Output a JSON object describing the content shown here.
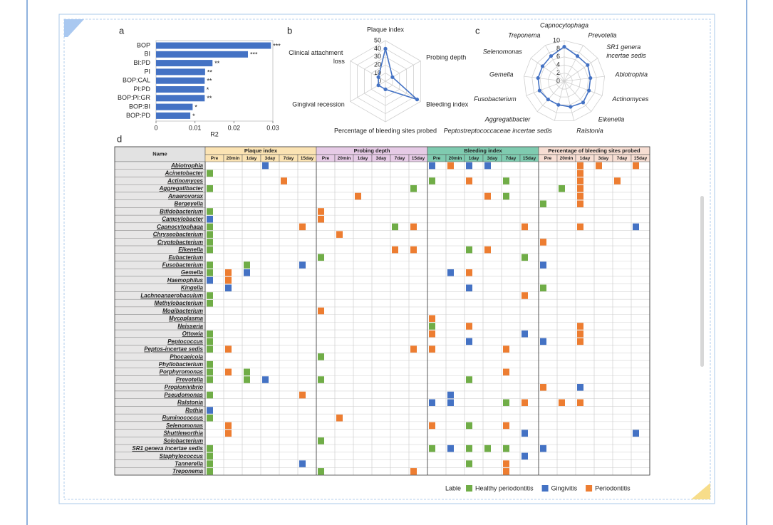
{
  "chart_data": [
    {
      "type": "barh",
      "label": "a",
      "categories": [
        "BOP",
        "BI",
        "BI:PD",
        "PI",
        "BOP:CAL",
        "PI:PD",
        "BOP:PI:GR",
        "BOP:BI",
        "BOP:PD"
      ],
      "values": [
        0.0295,
        0.0236,
        0.0145,
        0.0126,
        0.0125,
        0.0124,
        0.0125,
        0.0094,
        0.0088
      ],
      "significance": [
        "***",
        "***",
        "**",
        "**",
        "**",
        "*",
        "**",
        "*",
        "*"
      ],
      "color": "#4472c4",
      "xlabel": "R2",
      "xlim": [
        0,
        0.03
      ],
      "xticks": [
        0,
        0.01,
        0.02,
        0.03
      ]
    },
    {
      "type": "radar",
      "label": "b",
      "categories": [
        "Plaque index",
        "Probing depth",
        "Bleeding index",
        "Percentage of bleeding sites probed",
        "Gingival recession",
        "Clinical attachment loss"
      ],
      "values": [
        40,
        10,
        45,
        10,
        10,
        10
      ],
      "color": "#4472c4",
      "rlim": [
        0,
        50
      ],
      "rticks": [
        0,
        10,
        20,
        30,
        40,
        50
      ]
    },
    {
      "type": "radar",
      "label": "c",
      "categories": [
        "Capnocytophaga",
        "Prevotella",
        "SR1 genera incertae sedis",
        "Abiotrophia",
        "Actinomyces",
        "Eikenella",
        "Ralstonia",
        "Peptostreptococcaceae incertae sedis",
        "Aggregatibacter",
        "Fusobacterium",
        "Gemella",
        "Selenomonas",
        "Treponema"
      ],
      "values": [
        8.5,
        7,
        7,
        6.5,
        6.5,
        7,
        6.5,
        6,
        6,
        6.5,
        6.5,
        6.5,
        7
      ],
      "color": "#4472c4",
      "rlim": [
        0,
        10
      ],
      "rticks": [
        0,
        2,
        4,
        6,
        8,
        10
      ]
    }
  ],
  "table": {
    "label": "d",
    "name_header": "Name",
    "groups": [
      {
        "name": "Plaque index",
        "color": "#fbe3b3"
      },
      {
        "name": "Probing depth",
        "color": "#e6cbe6"
      },
      {
        "name": "Bleeding index",
        "color": "#7fcbb0"
      },
      {
        "name": "Percentage of bleeding sites probed",
        "color": "#f7ded3"
      }
    ],
    "times": [
      "Pre",
      "20min",
      "1day",
      "3day",
      "7day",
      "15day"
    ],
    "rows": [
      {
        "name": "Abiotrophia",
        "cells": [
          [
            3,
            1
          ],
          [
            12,
            1
          ],
          [
            13,
            2
          ],
          [
            14,
            1
          ],
          [
            15,
            1
          ],
          [
            20,
            2
          ],
          [
            21,
            2
          ],
          [
            23,
            2
          ]
        ]
      },
      {
        "name": "Acinetobacter",
        "cells": [
          [
            0,
            0
          ],
          [
            20,
            2
          ]
        ]
      },
      {
        "name": "Actinomyces",
        "cells": [
          [
            4,
            2
          ],
          [
            12,
            0
          ],
          [
            14,
            2
          ],
          [
            16,
            0
          ],
          [
            20,
            2
          ],
          [
            22,
            2
          ]
        ]
      },
      {
        "name": "Aggregatibacter",
        "cells": [
          [
            0,
            0
          ],
          [
            11,
            0
          ],
          [
            19,
            0
          ],
          [
            20,
            2
          ]
        ]
      },
      {
        "name": "Anaerovorax",
        "cells": [
          [
            8,
            2
          ],
          [
            15,
            2
          ],
          [
            16,
            0
          ],
          [
            20,
            2
          ]
        ]
      },
      {
        "name": "Bergeyella",
        "cells": [
          [
            18,
            0
          ],
          [
            20,
            2
          ]
        ]
      },
      {
        "name": "Bifidobacterium",
        "cells": [
          [
            0,
            0
          ],
          [
            6,
            2
          ]
        ]
      },
      {
        "name": "Campylobacter",
        "cells": [
          [
            0,
            1
          ],
          [
            6,
            2
          ]
        ]
      },
      {
        "name": "Capnocytophaga",
        "cells": [
          [
            0,
            0
          ],
          [
            5,
            2
          ],
          [
            10,
            0
          ],
          [
            11,
            2
          ],
          [
            17,
            2
          ],
          [
            20,
            2
          ],
          [
            23,
            1
          ]
        ]
      },
      {
        "name": "Chryseobacterium",
        "cells": [
          [
            0,
            0
          ],
          [
            7,
            2
          ]
        ]
      },
      {
        "name": "Cryptobacterium",
        "cells": [
          [
            0,
            0
          ],
          [
            18,
            2
          ]
        ]
      },
      {
        "name": "Eikenella",
        "cells": [
          [
            0,
            0
          ],
          [
            10,
            2
          ],
          [
            11,
            2
          ],
          [
            14,
            0
          ],
          [
            15,
            2
          ]
        ]
      },
      {
        "name": "Eubacterium",
        "cells": [
          [
            6,
            0
          ],
          [
            17,
            0
          ]
        ]
      },
      {
        "name": "Fusobacterium",
        "cells": [
          [
            0,
            0
          ],
          [
            2,
            0
          ],
          [
            5,
            1
          ],
          [
            18,
            1
          ]
        ]
      },
      {
        "name": "Gemella",
        "cells": [
          [
            0,
            0
          ],
          [
            1,
            2
          ],
          [
            2,
            1
          ],
          [
            13,
            1
          ],
          [
            14,
            2
          ]
        ]
      },
      {
        "name": "Haemophilus",
        "cells": [
          [
            0,
            1
          ],
          [
            1,
            2
          ]
        ]
      },
      {
        "name": "Kingella",
        "cells": [
          [
            1,
            1
          ],
          [
            14,
            1
          ],
          [
            18,
            0
          ]
        ]
      },
      {
        "name": "Lachnoanaerobaculum",
        "cells": [
          [
            0,
            0
          ],
          [
            17,
            2
          ]
        ]
      },
      {
        "name": "Methylobacterium",
        "cells": [
          [
            0,
            0
          ]
        ]
      },
      {
        "name": "Mogibacterium",
        "cells": [
          [
            6,
            2
          ]
        ]
      },
      {
        "name": "Mycoplasma",
        "cells": [
          [
            12,
            2
          ]
        ]
      },
      {
        "name": "Neisseria",
        "cells": [
          [
            12,
            0
          ],
          [
            14,
            2
          ],
          [
            20,
            2
          ]
        ]
      },
      {
        "name": "Ottowia",
        "cells": [
          [
            0,
            0
          ],
          [
            12,
            2
          ],
          [
            17,
            1
          ],
          [
            20,
            2
          ]
        ]
      },
      {
        "name": "Peptococcus",
        "cells": [
          [
            0,
            0
          ],
          [
            14,
            1
          ],
          [
            18,
            1
          ],
          [
            20,
            2
          ]
        ]
      },
      {
        "name": "Peptos-incertae sedis",
        "cells": [
          [
            0,
            0
          ],
          [
            1,
            2
          ],
          [
            11,
            2
          ],
          [
            12,
            2
          ],
          [
            16,
            2
          ]
        ]
      },
      {
        "name": "Phocaeicola",
        "cells": [
          [
            6,
            0
          ]
        ]
      },
      {
        "name": "Phyllobacterium",
        "cells": [
          [
            0,
            0
          ]
        ]
      },
      {
        "name": "Porphyromonas",
        "cells": [
          [
            0,
            0
          ],
          [
            1,
            2
          ],
          [
            2,
            0
          ],
          [
            16,
            2
          ]
        ]
      },
      {
        "name": "Prevotella",
        "cells": [
          [
            0,
            0
          ],
          [
            2,
            0
          ],
          [
            3,
            1
          ],
          [
            6,
            0
          ],
          [
            14,
            0
          ]
        ]
      },
      {
        "name": "Propionivibrio",
        "cells": [
          [
            18,
            2
          ],
          [
            20,
            1
          ]
        ]
      },
      {
        "name": "Pseudomonas",
        "cells": [
          [
            0,
            0
          ],
          [
            5,
            2
          ],
          [
            13,
            1
          ]
        ]
      },
      {
        "name": "Ralstonia",
        "cells": [
          [
            12,
            1
          ],
          [
            13,
            1
          ],
          [
            16,
            0
          ],
          [
            17,
            2
          ],
          [
            19,
            2
          ],
          [
            20,
            2
          ]
        ]
      },
      {
        "name": "Rothia",
        "cells": [
          [
            0,
            1
          ]
        ]
      },
      {
        "name": "Ruminococcus",
        "cells": [
          [
            0,
            0
          ],
          [
            7,
            2
          ]
        ]
      },
      {
        "name": "Selenomonas",
        "cells": [
          [
            1,
            2
          ],
          [
            12,
            2
          ],
          [
            14,
            0
          ],
          [
            16,
            2
          ]
        ]
      },
      {
        "name": "Shuttleworthia",
        "cells": [
          [
            1,
            2
          ],
          [
            17,
            1
          ],
          [
            23,
            1
          ]
        ]
      },
      {
        "name": "Solobacterium",
        "cells": [
          [
            6,
            0
          ]
        ]
      },
      {
        "name": "SR1 genera incertae sedis",
        "cells": [
          [
            0,
            0
          ],
          [
            12,
            0
          ],
          [
            13,
            1
          ],
          [
            14,
            0
          ],
          [
            15,
            0
          ],
          [
            16,
            0
          ],
          [
            18,
            1
          ]
        ]
      },
      {
        "name": "Staphylococcus",
        "cells": [
          [
            0,
            0
          ],
          [
            17,
            1
          ]
        ]
      },
      {
        "name": "Tannerella",
        "cells": [
          [
            0,
            0
          ],
          [
            5,
            1
          ],
          [
            14,
            0
          ],
          [
            16,
            2
          ]
        ]
      },
      {
        "name": "Treponema",
        "cells": [
          [
            0,
            0
          ],
          [
            6,
            0
          ],
          [
            11,
            2
          ],
          [
            16,
            2
          ]
        ]
      }
    ]
  },
  "legend": {
    "title": "Lable",
    "items": [
      {
        "name": "Healthy periodontitis",
        "color": "#70ad47"
      },
      {
        "name": "Gingivitis",
        "color": "#4472c4"
      },
      {
        "name": "Periodontitis",
        "color": "#ed7d31"
      }
    ]
  }
}
